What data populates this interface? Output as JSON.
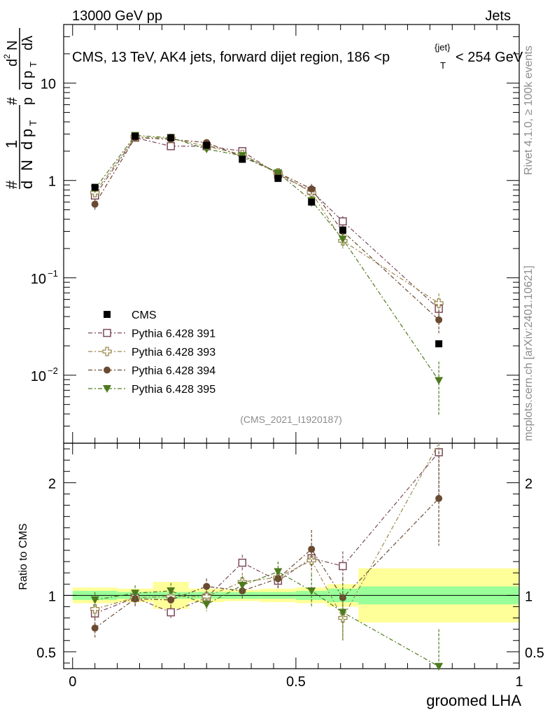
{
  "header": {
    "left": "13000 GeV pp",
    "right": "Jets"
  },
  "side": {
    "rivet": "Rivet 4.1.0, ≥ 100k events",
    "mcplots": "mcplots.cern.ch [arXiv:2401.10621]"
  },
  "top_ylabel": {
    "n1": "1",
    "frac1": "N",
    "d1": "d",
    "sub_t1": "T",
    "p1": "p",
    "hash1": "#",
    "d2": "d",
    "p2": "p",
    "hash2": "#",
    "d3": "d",
    "sup2": "2",
    "frac2": "N",
    "d4": "d",
    "sub_t2": "T",
    "p3": "p",
    "dlam": "dλ"
  },
  "chart_data": {
    "type": "scatter",
    "title": "CMS, 13 TeV, AK4 jets, forward dijet region, 186 <p",
    "title_sub": "T",
    "title_sup": "{jet}",
    "title_tail": "< 254 GeV",
    "watermark": "(CMS_2021_I1920187)",
    "xlabel": "groomed LHA",
    "ratio_ylabel": "Ratio to CMS",
    "xlim": [
      -0.02,
      1.0
    ],
    "ylim": [
      0.002,
      40
    ],
    "ratio_ylim": [
      0.35,
      2.35
    ],
    "x_ticks": [
      {
        "v": 0,
        "label": "0"
      },
      {
        "v": 0.5,
        "label": "0.5"
      },
      {
        "v": 1,
        "label": "1"
      }
    ],
    "y_ticks": [
      {
        "v": 0.01,
        "base": "10",
        "exp": "−2"
      },
      {
        "v": 0.1,
        "base": "10",
        "exp": "−1"
      },
      {
        "v": 1,
        "base": "1",
        "exp": ""
      },
      {
        "v": 10,
        "base": "10",
        "exp": ""
      }
    ],
    "ratio_ticks": [
      {
        "v": 0.5,
        "label": "0.5"
      },
      {
        "v": 1,
        "label": "1"
      },
      {
        "v": 2,
        "label": "2"
      }
    ],
    "bins": [
      [
        0.0,
        0.1
      ],
      [
        0.1,
        0.18
      ],
      [
        0.18,
        0.26
      ],
      [
        0.26,
        0.34
      ],
      [
        0.34,
        0.42
      ],
      [
        0.42,
        0.5
      ],
      [
        0.5,
        0.57
      ],
      [
        0.57,
        0.64
      ],
      [
        0.64,
        1.0
      ]
    ],
    "x": [
      0.05,
      0.14,
      0.22,
      0.3,
      0.38,
      0.46,
      0.535,
      0.605,
      0.82
    ],
    "data": {
      "name": "CMS",
      "values": [
        0.85,
        2.85,
        2.75,
        2.3,
        1.65,
        1.05,
        0.6,
        0.31,
        0.021
      ],
      "band_stat": [
        0.04,
        0.03,
        0.03,
        0.03,
        0.03,
        0.03,
        0.04,
        0.06,
        0.08
      ],
      "band_tot": [
        0.07,
        0.06,
        0.12,
        0.06,
        0.05,
        0.06,
        0.07,
        0.1,
        0.24
      ]
    },
    "series": [
      {
        "name": "Pythia 6.428 391",
        "marker": "open-square",
        "color": "#7a4a5a",
        "values": [
          0.7,
          2.75,
          2.25,
          2.25,
          2.0,
          1.15,
          0.78,
          0.38,
          0.048
        ],
        "errors": [
          0.08,
          0.2,
          0.15,
          0.15,
          0.12,
          0.08,
          0.08,
          0.05,
          0.012
        ],
        "ratio": [
          0.84,
          0.98,
          0.85,
          0.98,
          1.29,
          1.13,
          1.33,
          1.26,
          2.27
        ],
        "ratio_err": [
          0.06,
          0.06,
          0.05,
          0.06,
          0.07,
          0.07,
          0.1,
          0.13,
          0.45
        ]
      },
      {
        "name": "Pythia 6.428 393",
        "marker": "open-cross",
        "color": "#9c8a4e",
        "values": [
          0.75,
          2.8,
          2.7,
          2.25,
          1.85,
          1.2,
          0.75,
          0.24,
          0.055
        ],
        "errors": [
          0.08,
          0.2,
          0.2,
          0.15,
          0.12,
          0.08,
          0.08,
          0.04,
          0.014
        ],
        "ratio": [
          0.88,
          0.98,
          0.99,
          0.99,
          1.12,
          1.16,
          1.31,
          0.8,
          2.6
        ],
        "ratio_err": [
          0.07,
          0.07,
          0.07,
          0.07,
          0.08,
          0.08,
          0.12,
          0.18,
          0.55
        ]
      },
      {
        "name": "Pythia 6.428 394",
        "marker": "filled-circle",
        "color": "#6b4a32",
        "values": [
          0.57,
          2.75,
          2.65,
          2.45,
          1.75,
          1.2,
          0.82,
          0.3,
          0.037
        ],
        "errors": [
          0.07,
          0.2,
          0.2,
          0.15,
          0.12,
          0.08,
          0.1,
          0.04,
          0.01
        ],
        "ratio": [
          0.71,
          0.97,
          0.96,
          1.08,
          1.04,
          1.15,
          1.41,
          0.98,
          1.86
        ],
        "ratio_err": [
          0.09,
          0.07,
          0.07,
          0.07,
          0.07,
          0.09,
          0.17,
          0.17,
          0.42
        ]
      },
      {
        "name": "Pythia 6.428 395",
        "marker": "filled-triangle-down",
        "color": "#4e7a1e",
        "values": [
          0.82,
          2.9,
          2.75,
          2.1,
          1.8,
          1.2,
          0.62,
          0.25,
          0.0088
        ],
        "errors": [
          0.08,
          0.2,
          0.2,
          0.15,
          0.12,
          0.08,
          0.08,
          0.04,
          0.005
        ],
        "ratio": [
          0.96,
          1.02,
          1.04,
          0.92,
          1.09,
          1.21,
          1.04,
          0.85,
          0.37
        ],
        "ratio_err": [
          0.07,
          0.07,
          0.07,
          0.06,
          0.08,
          0.09,
          0.15,
          0.26,
          0.33
        ]
      }
    ]
  },
  "colors": {
    "band_total": "#ffff99",
    "band_stat": "#99ff99",
    "text": "#000000"
  }
}
